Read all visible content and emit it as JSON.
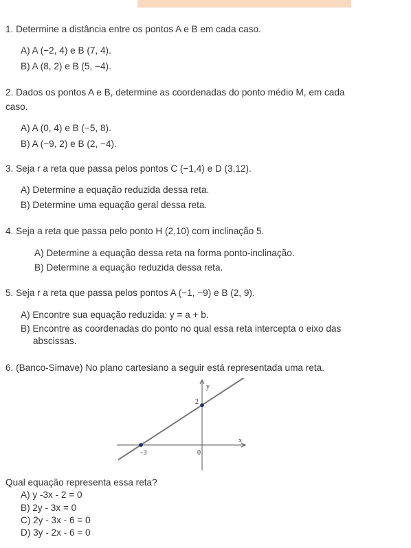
{
  "questions": [
    {
      "text": "1. Determine a distância entre os pontos A e B em cada caso.",
      "options": [
        "A) A (−2, 4) e B (7, 4).",
        "B) A (8, 2) e B (5, −4)."
      ]
    },
    {
      "text": "2. Dados os pontos A e B, determine as coordenadas do ponto médio M, em cada caso.",
      "options": [
        "A) A (0, 4) e B (−5, 8).",
        "B) A (−9, 2) e B (2, −4)."
      ]
    },
    {
      "text": "3. Seja r a reta que passa pelos pontos C (−1,4) e D (3,12).",
      "options": [
        "A) Determine a equação reduzida dessa reta.",
        "B) Determine uma equação geral dessa reta."
      ]
    },
    {
      "text": "4. Seja a reta que passa pelo ponto H (2,10) com inclinação 5.",
      "options": [
        "A) Determine a equação dessa reta na forma ponto-inclinação.",
        "B) Determine a equação reduzida dessa reta."
      ]
    },
    {
      "text": "5. Seja r a reta que passa pelos pontos A (−1, −9) e B (2, 9).",
      "options": [
        "A) Encontre sua equação reduzida: y = a + b.",
        "B) Encontre as coordenadas do ponto no qual essa reta intercepta o eixo das abscissas."
      ]
    },
    {
      "text": "6. (Banco-Simave) No plano cartesiano a seguir está representada uma reta.",
      "graph_labels": [
        "y",
        "2",
        "x",
        "−3",
        "0"
      ],
      "prompt": "Qual equação representa essa reta?",
      "options": [
        "A) y -3x - 2 = 0",
        "B) 2y - 3x = 0",
        "C) 2y - 3x - 6 = 0",
        "D) 3y - 2x - 6 = 0"
      ]
    }
  ]
}
